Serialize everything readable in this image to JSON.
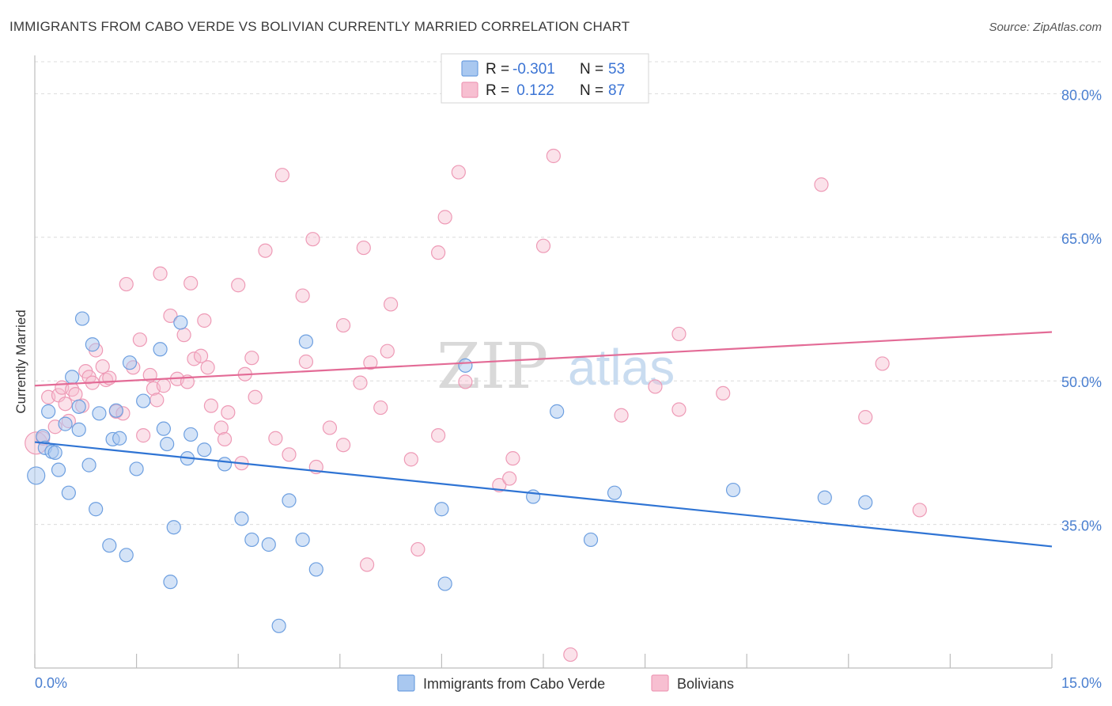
{
  "title": "IMMIGRANTS FROM CABO VERDE VS BOLIVIAN CURRENTLY MARRIED CORRELATION CHART",
  "source": "Source: ZipAtlas.com",
  "watermark": {
    "zip": "ZIP",
    "atlas": "atlas"
  },
  "colors": {
    "blue_fill": "#a9c8f0",
    "blue_stroke": "#6d9fe0",
    "blue_line": "#2f74d4",
    "pink_fill": "#f7bfd1",
    "pink_stroke": "#ee9ab6",
    "pink_line": "#e36b96",
    "tick_text": "#4a7fd0",
    "grid": "#dcdcdc"
  },
  "legend": {
    "rows": [
      {
        "r_label": "R = ",
        "r_value": "-0.301",
        "n_label": "N = ",
        "n_value": "53"
      },
      {
        "r_label": "R = ",
        "r_value": " 0.122",
        "n_label": "N = ",
        "n_value": "87"
      }
    ]
  },
  "bottom_legend": [
    "Immigrants from Cabo Verde",
    "Bolivians"
  ],
  "chart_data": {
    "type": "scatter",
    "title": "IMMIGRANTS FROM CABO VERDE VS BOLIVIAN CURRENTLY MARRIED CORRELATION CHART",
    "xlabel": "",
    "ylabel": "Currently Married",
    "xlim": [
      0,
      15
    ],
    "ylim": [
      20,
      84
    ],
    "x_tick_labels": [
      "0.0%",
      "15.0%"
    ],
    "y_ticks": [
      35,
      50,
      65,
      80
    ],
    "y_tick_labels": [
      "35.0%",
      "50.0%",
      "65.0%",
      "80.0%"
    ],
    "grid": true,
    "series": [
      {
        "name": "Immigrants from Cabo Verde",
        "color": "blue",
        "r": -0.301,
        "n": 53,
        "trend": {
          "x": [
            0,
            15
          ],
          "y": [
            43.6,
            32.7
          ]
        },
        "points": [
          [
            0.02,
            40.1
          ],
          [
            0.12,
            44.2
          ],
          [
            0.15,
            43.0
          ],
          [
            0.2,
            46.8
          ],
          [
            0.25,
            42.6
          ],
          [
            0.3,
            42.5
          ],
          [
            0.35,
            40.7
          ],
          [
            0.45,
            45.5
          ],
          [
            0.5,
            38.3
          ],
          [
            0.55,
            50.4
          ],
          [
            0.65,
            47.3
          ],
          [
            0.65,
            44.9
          ],
          [
            0.7,
            56.5
          ],
          [
            0.8,
            41.2
          ],
          [
            0.85,
            53.8
          ],
          [
            0.9,
            36.6
          ],
          [
            0.95,
            46.6
          ],
          [
            1.1,
            32.8
          ],
          [
            1.15,
            43.9
          ],
          [
            1.2,
            46.9
          ],
          [
            1.25,
            44.0
          ],
          [
            1.35,
            31.8
          ],
          [
            1.4,
            51.9
          ],
          [
            1.5,
            40.8
          ],
          [
            1.6,
            47.9
          ],
          [
            1.85,
            53.3
          ],
          [
            1.9,
            45.0
          ],
          [
            1.95,
            43.4
          ],
          [
            2.0,
            29.0
          ],
          [
            2.05,
            34.7
          ],
          [
            2.15,
            56.1
          ],
          [
            2.25,
            41.9
          ],
          [
            2.3,
            44.4
          ],
          [
            2.5,
            42.8
          ],
          [
            2.8,
            41.3
          ],
          [
            3.05,
            35.6
          ],
          [
            3.2,
            33.4
          ],
          [
            3.45,
            32.9
          ],
          [
            3.6,
            24.4
          ],
          [
            3.75,
            37.5
          ],
          [
            3.95,
            33.4
          ],
          [
            4.0,
            54.1
          ],
          [
            4.15,
            30.3
          ],
          [
            6.0,
            36.6
          ],
          [
            6.05,
            28.8
          ],
          [
            6.35,
            51.6
          ],
          [
            7.35,
            37.9
          ],
          [
            7.7,
            46.8
          ],
          [
            8.2,
            33.4
          ],
          [
            8.55,
            38.3
          ],
          [
            10.3,
            38.6
          ],
          [
            11.65,
            37.8
          ],
          [
            12.25,
            37.3
          ]
        ]
      },
      {
        "name": "Bolivians",
        "color": "pink",
        "r": 0.122,
        "n": 87,
        "trend": {
          "x": [
            0,
            15
          ],
          "y": [
            49.5,
            55.1
          ]
        },
        "points": [
          [
            0.02,
            43.5
          ],
          [
            0.12,
            44.0
          ],
          [
            0.2,
            48.3
          ],
          [
            0.3,
            45.2
          ],
          [
            0.35,
            48.5
          ],
          [
            0.4,
            49.3
          ],
          [
            0.45,
            47.6
          ],
          [
            0.5,
            45.8
          ],
          [
            0.55,
            49.1
          ],
          [
            0.6,
            48.6
          ],
          [
            0.7,
            47.4
          ],
          [
            0.75,
            51.0
          ],
          [
            0.8,
            50.4
          ],
          [
            0.85,
            49.8
          ],
          [
            0.9,
            53.2
          ],
          [
            1.0,
            51.5
          ],
          [
            1.05,
            50.1
          ],
          [
            1.1,
            50.3
          ],
          [
            1.2,
            46.8
          ],
          [
            1.3,
            46.6
          ],
          [
            1.35,
            60.1
          ],
          [
            1.45,
            51.4
          ],
          [
            1.55,
            54.3
          ],
          [
            1.6,
            44.3
          ],
          [
            1.7,
            50.6
          ],
          [
            1.75,
            49.2
          ],
          [
            1.8,
            48.0
          ],
          [
            1.85,
            61.2
          ],
          [
            1.9,
            49.5
          ],
          [
            2.0,
            56.8
          ],
          [
            2.1,
            50.2
          ],
          [
            2.2,
            54.8
          ],
          [
            2.25,
            49.9
          ],
          [
            2.3,
            60.2
          ],
          [
            2.35,
            52.3
          ],
          [
            2.45,
            52.6
          ],
          [
            2.5,
            56.3
          ],
          [
            2.55,
            51.4
          ],
          [
            2.6,
            47.4
          ],
          [
            2.75,
            45.1
          ],
          [
            2.8,
            43.9
          ],
          [
            2.85,
            46.7
          ],
          [
            3.0,
            60.0
          ],
          [
            3.05,
            41.4
          ],
          [
            3.1,
            50.7
          ],
          [
            3.2,
            52.4
          ],
          [
            3.25,
            48.3
          ],
          [
            3.4,
            63.6
          ],
          [
            3.55,
            44.0
          ],
          [
            3.65,
            71.5
          ],
          [
            3.75,
            42.3
          ],
          [
            3.95,
            58.9
          ],
          [
            4.0,
            52.0
          ],
          [
            4.1,
            64.8
          ],
          [
            4.15,
            41.0
          ],
          [
            4.35,
            45.1
          ],
          [
            4.55,
            43.3
          ],
          [
            4.55,
            55.8
          ],
          [
            4.8,
            49.8
          ],
          [
            4.85,
            63.9
          ],
          [
            4.9,
            30.8
          ],
          [
            4.95,
            51.9
          ],
          [
            5.1,
            47.2
          ],
          [
            5.2,
            53.1
          ],
          [
            5.25,
            58.0
          ],
          [
            5.55,
            41.8
          ],
          [
            5.65,
            32.4
          ],
          [
            5.95,
            63.4
          ],
          [
            5.95,
            44.3
          ],
          [
            6.05,
            67.1
          ],
          [
            6.25,
            71.8
          ],
          [
            6.35,
            49.9
          ],
          [
            6.85,
            39.1
          ],
          [
            7.0,
            39.8
          ],
          [
            7.05,
            41.9
          ],
          [
            7.5,
            64.1
          ],
          [
            7.65,
            73.5
          ],
          [
            7.9,
            21.4
          ],
          [
            8.65,
            46.4
          ],
          [
            9.15,
            49.4
          ],
          [
            9.5,
            47.0
          ],
          [
            9.5,
            54.9
          ],
          [
            10.15,
            48.7
          ],
          [
            11.6,
            70.5
          ],
          [
            12.25,
            46.2
          ],
          [
            12.5,
            51.8
          ],
          [
            13.05,
            36.5
          ]
        ]
      }
    ]
  }
}
